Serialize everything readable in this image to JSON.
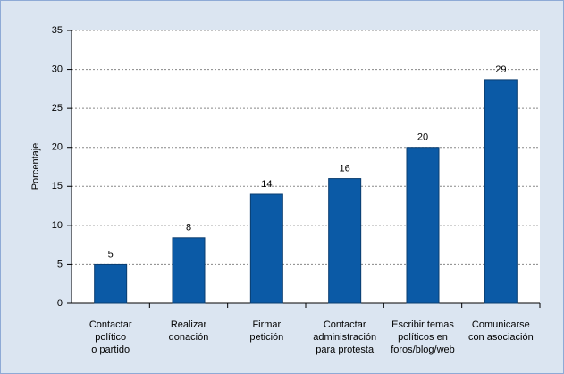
{
  "chart_data": {
    "type": "bar",
    "y_label": "Porcentaje",
    "categories": [
      [
        "Contactar",
        "político",
        "o partido"
      ],
      [
        "Realizar",
        "donación"
      ],
      [
        "Firmar",
        "petición"
      ],
      [
        "Contactar",
        "administración",
        "para protesta"
      ],
      [
        "Escribir temas",
        "políticos en",
        "foros/blog/web"
      ],
      [
        "Comunicarse",
        "con asociación"
      ]
    ],
    "values": [
      5,
      8.4,
      14,
      16,
      20,
      28.7
    ],
    "value_labels": [
      "5",
      "8",
      "14",
      "16",
      "20",
      "29"
    ],
    "color": "#0b5aa6",
    "ylim": [
      0,
      35
    ],
    "yticks": [
      0,
      5,
      10,
      15,
      20,
      25,
      30,
      35
    ],
    "grid": true
  }
}
